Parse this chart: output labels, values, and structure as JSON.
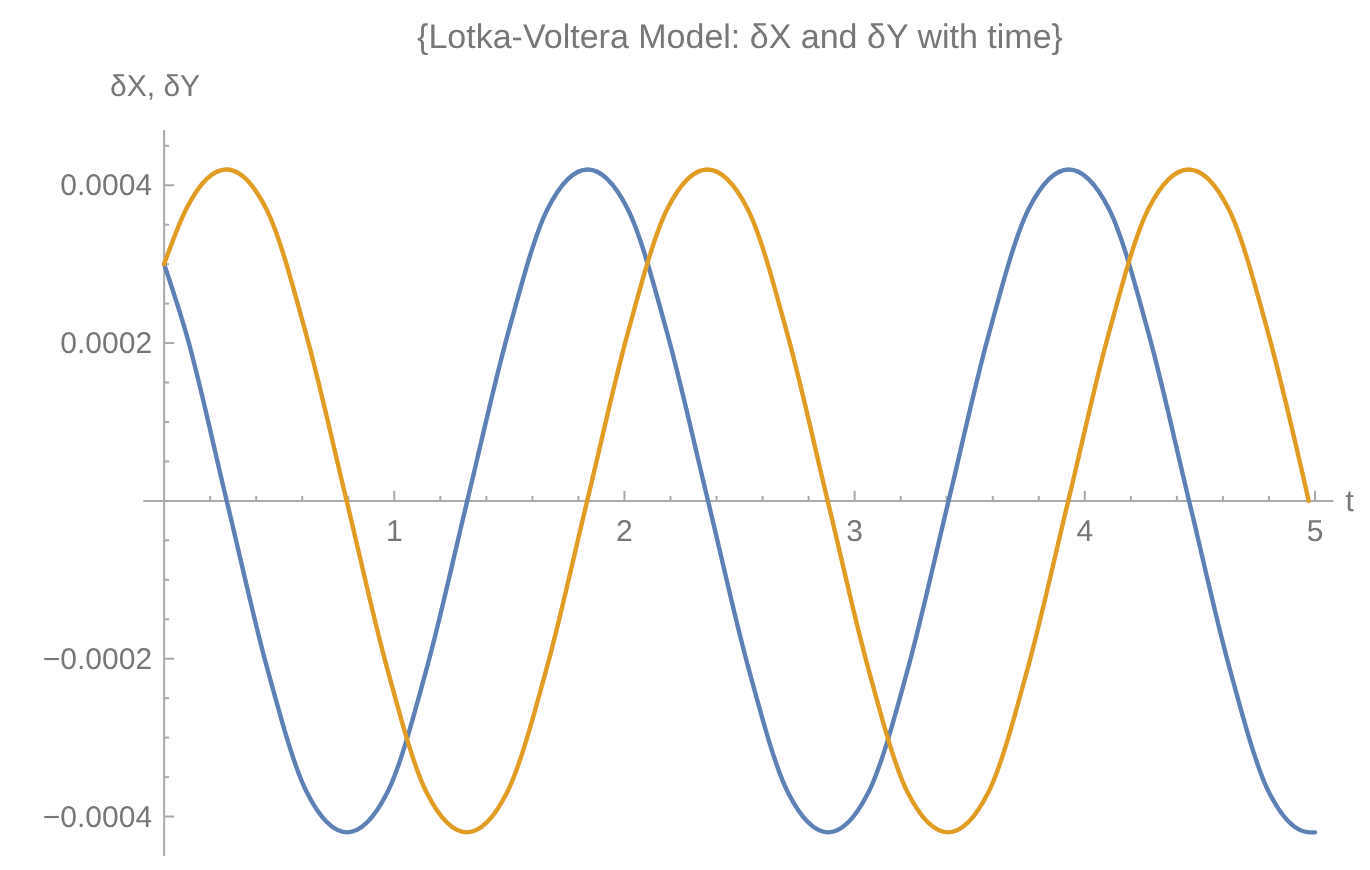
{
  "chart_data": {
    "type": "line",
    "title": "{Lotka-Voltera Model: δX and δY with time}",
    "xlabel": "t",
    "ylabel": "δX, δY",
    "xlim": [
      -0.09,
      5.08
    ],
    "ylim": [
      -0.00045,
      0.00047
    ],
    "xticks": [
      {
        "value": 0.2,
        "label": null
      },
      {
        "value": 0.4,
        "label": null
      },
      {
        "value": 0.6,
        "label": null
      },
      {
        "value": 0.8,
        "label": null
      },
      1,
      {
        "value": 1.2,
        "label": null
      },
      {
        "value": 1.4,
        "label": null
      },
      {
        "value": 1.6,
        "label": null
      },
      {
        "value": 1.8,
        "label": null
      },
      2,
      {
        "value": 2.2,
        "label": null
      },
      {
        "value": 2.4,
        "label": null
      },
      {
        "value": 2.6,
        "label": null
      },
      {
        "value": 2.8,
        "label": null
      },
      3,
      {
        "value": 3.2,
        "label": null
      },
      {
        "value": 3.4,
        "label": null
      },
      {
        "value": 3.6,
        "label": null
      },
      {
        "value": 3.8,
        "label": null
      },
      4,
      {
        "value": 4.2,
        "label": null
      },
      {
        "value": 4.4,
        "label": null
      },
      {
        "value": 4.6,
        "label": null
      },
      {
        "value": 4.8,
        "label": null
      },
      5
    ],
    "yticks": [
      {
        "value": -0.0004,
        "label": "−0.0004"
      },
      {
        "value": -0.00035,
        "label": null
      },
      {
        "value": -0.0003,
        "label": null
      },
      {
        "value": -0.00025,
        "label": null
      },
      {
        "value": -0.0002,
        "label": "−0.0002"
      },
      {
        "value": -0.00015,
        "label": null
      },
      {
        "value": -0.0001,
        "label": null
      },
      {
        "value": -5e-05,
        "label": null
      },
      {
        "value": 5e-05,
        "label": null
      },
      {
        "value": 0.0001,
        "label": null
      },
      {
        "value": 0.00015,
        "label": null
      },
      0.0002,
      {
        "value": 0.00025,
        "label": null
      },
      {
        "value": 0.0003,
        "label": null
      },
      {
        "value": 0.00035,
        "label": null
      },
      0.0004,
      {
        "value": 0.00045,
        "label": null
      }
    ],
    "grid": false,
    "line_style": "solid",
    "marker": "none",
    "series": [
      {
        "color": "#5e81b5",
        "x": [
          0,
          0.098,
          0.272,
          0.446,
          0.621,
          0.795,
          0.969,
          1.143,
          1.317,
          1.492,
          1.666,
          1.84,
          2.014,
          2.188,
          2.363,
          2.537,
          2.711,
          2.885,
          3.059,
          3.234,
          3.408,
          3.582,
          3.756,
          3.93,
          4.105,
          4.279,
          4.453,
          4.627,
          4.801,
          4.976,
          5
        ],
        "values": [
          0.0003,
          0.00021,
          0,
          -0.00021,
          -0.00037,
          -0.00042,
          -0.00037,
          -0.00021,
          0,
          0.00021,
          0.00037,
          0.00042,
          0.00037,
          0.00021,
          0,
          -0.00021,
          -0.00037,
          -0.00042,
          -0.00037,
          -0.00021,
          0,
          0.00021,
          0.00037,
          0.00042,
          0.00037,
          0.00021,
          0,
          -0.00021,
          -0.00037,
          -0.00042,
          -0.00042
        ]
      },
      {
        "color": "#e19c24",
        "x": [
          0,
          0.096,
          0.27,
          0.444,
          0.618,
          0.793,
          0.967,
          1.141,
          1.315,
          1.489,
          1.664,
          1.838,
          2.012,
          2.186,
          2.36,
          2.535,
          2.709,
          2.883,
          3.057,
          3.231,
          3.406,
          3.58,
          3.754,
          3.928,
          4.102,
          4.276,
          4.451,
          4.625,
          4.799,
          4.973
        ],
        "values": [
          0.0003,
          0.00037,
          0.00042,
          0.00037,
          0.00021,
          0,
          -0.00021,
          -0.00037,
          -0.00042,
          -0.00037,
          -0.00021,
          0,
          0.00021,
          0.00037,
          0.00042,
          0.00037,
          0.00021,
          0,
          -0.00021,
          -0.00037,
          -0.00042,
          -0.00037,
          -0.00021,
          0,
          0.00021,
          0.00037,
          0.00042,
          0.00037,
          0.00021,
          0
        ]
      }
    ]
  }
}
